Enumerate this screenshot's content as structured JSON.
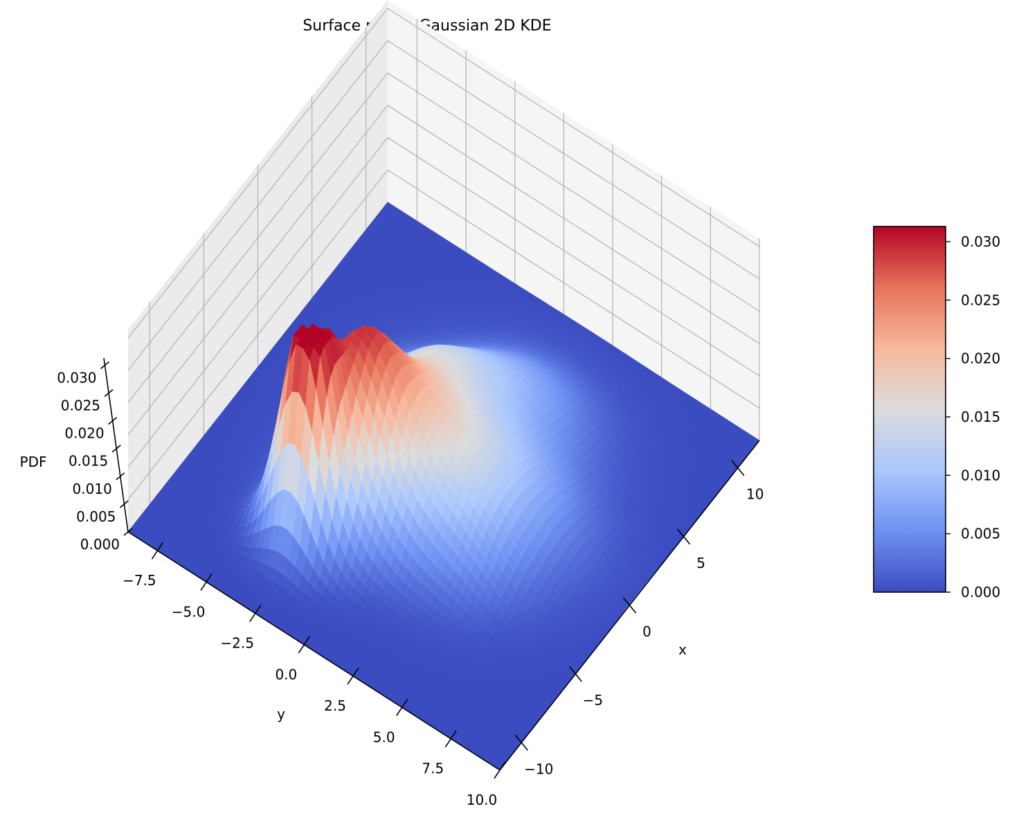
{
  "chart_data": {
    "type": "surface",
    "title": "Surface plot of Gaussian 2D KDE",
    "xlabel": "x",
    "ylabel": "y",
    "zlabel": "PDF",
    "xlim": [
      -12,
      12
    ],
    "ylim": [
      -9,
      10
    ],
    "zlim": [
      0,
      0.0313
    ],
    "x_ticks": [
      {
        "value": -10,
        "label": "−10"
      },
      {
        "value": -5,
        "label": "−5"
      },
      {
        "value": 0,
        "label": "0"
      },
      {
        "value": 5,
        "label": "5"
      },
      {
        "value": 10,
        "label": "10"
      }
    ],
    "y_ticks": [
      {
        "value": -7.5,
        "label": "−7.5"
      },
      {
        "value": -5.0,
        "label": "−5.0"
      },
      {
        "value": -2.5,
        "label": "−2.5"
      },
      {
        "value": 0.0,
        "label": "0.0"
      },
      {
        "value": 2.5,
        "label": "2.5"
      },
      {
        "value": 5.0,
        "label": "5.0"
      },
      {
        "value": 7.5,
        "label": "7.5"
      },
      {
        "value": 10.0,
        "label": "10.0"
      }
    ],
    "z_ticks": [
      {
        "value": 0.0,
        "label": "0.000"
      },
      {
        "value": 0.005,
        "label": "0.005"
      },
      {
        "value": 0.01,
        "label": "0.010"
      },
      {
        "value": 0.015,
        "label": "0.015"
      },
      {
        "value": 0.02,
        "label": "0.020"
      },
      {
        "value": 0.025,
        "label": "0.025"
      },
      {
        "value": 0.03,
        "label": "0.030"
      }
    ],
    "colormap": "coolwarm",
    "colorbar": {
      "min": 0.0,
      "max": 0.0313,
      "ticks": [
        {
          "value": 0.0,
          "label": "0.000"
        },
        {
          "value": 0.005,
          "label": "0.005"
        },
        {
          "value": 0.01,
          "label": "0.010"
        },
        {
          "value": 0.015,
          "label": "0.015"
        },
        {
          "value": 0.02,
          "label": "0.020"
        },
        {
          "value": 0.025,
          "label": "0.025"
        },
        {
          "value": 0.03,
          "label": "0.030"
        }
      ]
    },
    "density_peaks": [
      {
        "x": -7.0,
        "y": -2.7,
        "peak_pdf": 0.0313
      },
      {
        "x": -4.5,
        "y": -1.5,
        "peak_pdf": 0.021
      },
      {
        "x": -2.0,
        "y": -0.5,
        "peak_pdf": 0.013
      },
      {
        "x": 2.0,
        "y": -1.0,
        "peak_pdf": 0.01
      },
      {
        "x": 5.5,
        "y": 1.5,
        "peak_pdf": 0.006
      },
      {
        "x": 0.5,
        "y": 4.0,
        "peak_pdf": 0.007
      },
      {
        "x": -3.0,
        "y": 3.0,
        "peak_pdf": 0.008
      }
    ],
    "grid": true,
    "colormap_stops": [
      "#3b4cc0",
      "#6f92f3",
      "#aac7fd",
      "#dddcdc",
      "#f7b89c",
      "#e7745b",
      "#b40426"
    ]
  }
}
